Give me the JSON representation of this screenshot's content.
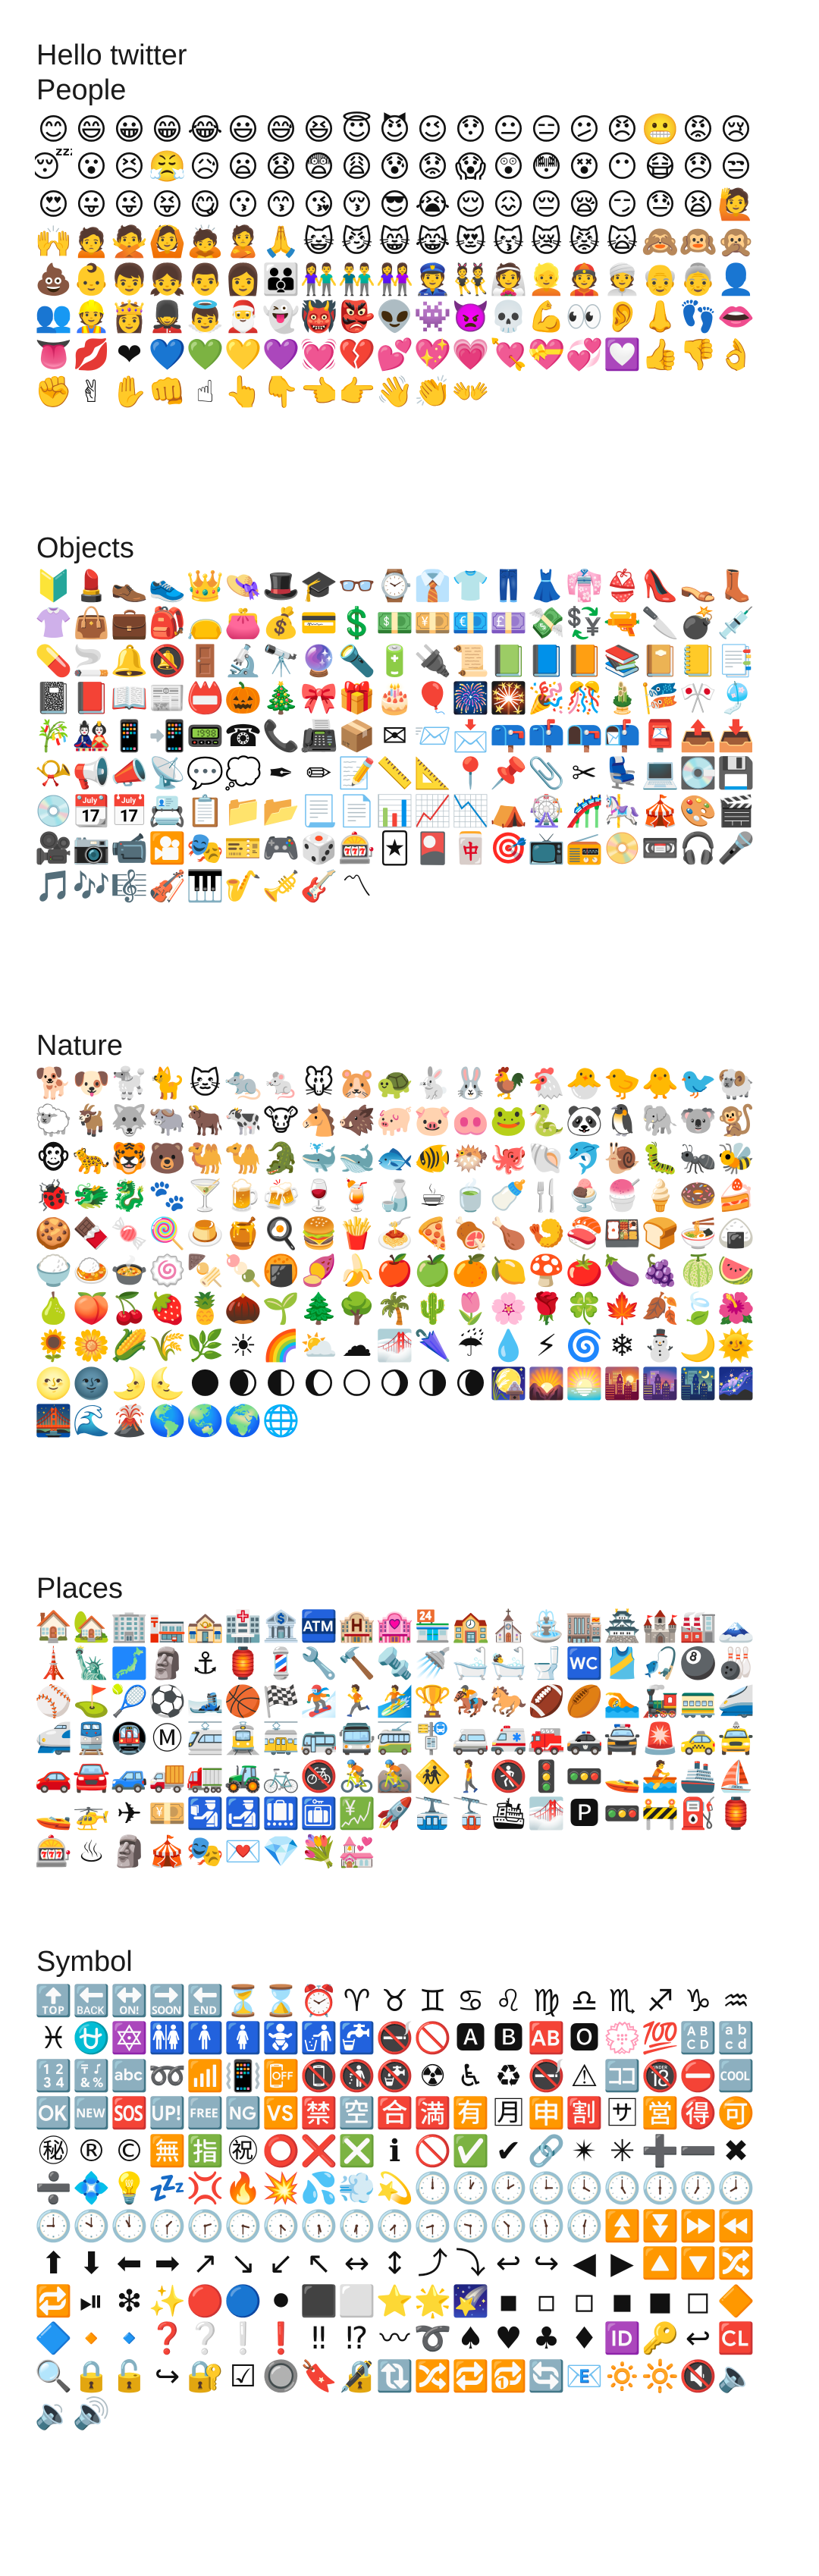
{
  "header": {
    "line1": "Hello twitter",
    "line2": "People"
  },
  "sections": [
    {
      "id": "people",
      "title": "",
      "emojis": [
        "😊",
        "😄",
        "😀",
        "😁",
        "😂",
        "😃",
        "😅",
        "😆",
        "😇",
        "😈",
        "😉",
        "😯",
        "😐",
        "😑",
        "😕",
        "😠",
        "😬",
        "😡",
        "😢",
        "😴",
        "😮",
        "😣",
        "😤",
        "😥",
        "😦",
        "😧",
        "😨",
        "😩",
        "😰",
        "😟",
        "😱",
        "😲",
        "😳",
        "😵",
        "😶",
        "😷",
        "😞",
        "😒",
        "😍",
        "😛",
        "😜",
        "😝",
        "😋",
        "😗",
        "😙",
        "😘",
        "😚",
        "😎",
        "😭",
        "😌",
        "😖",
        "😔",
        "😪",
        "😏",
        "😓",
        "😫",
        "🙋",
        "🙌",
        "🙍",
        "🙅",
        "🙆",
        "🙇",
        "🙎",
        "🙏",
        "😺",
        "😼",
        "😸",
        "😹",
        "😻",
        "😽",
        "😿",
        "😾",
        "🙀",
        "🙈",
        "🙉",
        "🙊",
        "💩",
        "👶",
        "👦",
        "👧",
        "👨",
        "👩",
        "👪",
        "👫",
        "👬",
        "👭",
        "👮",
        "👯",
        "👰",
        "👱",
        "👲",
        "👳",
        "👴",
        "👵",
        "👤",
        "👥",
        "👷",
        "👸",
        "💂",
        "👼",
        "🎅",
        "👻",
        "👹",
        "👺",
        "👽",
        "👾",
        "👿",
        "💀",
        "💪",
        "👀",
        "👂",
        "👃",
        "👣",
        "👄",
        "👅",
        "💋",
        "❤",
        "💙",
        "💚",
        "💛",
        "💜",
        "💓",
        "💔",
        "💕",
        "💖",
        "💗",
        "💘",
        "💝",
        "💞",
        "💟",
        "👍",
        "👎",
        "👌",
        "✊",
        "✌",
        "✋",
        "👊",
        "☝",
        "👆",
        "👇",
        "👈",
        "👉",
        "👋",
        "👏",
        "👐"
      ]
    },
    {
      "id": "objects",
      "title": "Objects",
      "emojis": [
        "🔰",
        "💄",
        "👞",
        "👟",
        "👑",
        "👒",
        "🎩",
        "🎓",
        "👓",
        "⌚",
        "👔",
        "👕",
        "👖",
        "👗",
        "👘",
        "👙",
        "👠",
        "👡",
        "👢",
        "👚",
        "👜",
        "💼",
        "🎒",
        "👝",
        "👛",
        "💰",
        "💳",
        "💲",
        "💵",
        "💴",
        "💶",
        "💷",
        "💸",
        "💱",
        "🔫",
        "🔪",
        "💣",
        "💉",
        "💊",
        "🚬",
        "🔔",
        "🔕",
        "🚪",
        "🔬",
        "🔭",
        "🔮",
        "🔦",
        "🔋",
        "🔌",
        "📜",
        "📗",
        "📘",
        "📙",
        "📚",
        "📔",
        "📒",
        "📑",
        "📓",
        "📕",
        "📖",
        "📰",
        "📛",
        "🎃",
        "🎄",
        "🎀",
        "🎁",
        "🎂",
        "🎈",
        "🎆",
        "🎇",
        "🎉",
        "🎊",
        "🎍",
        "🎏",
        "🎌",
        "🎐",
        "🎋",
        "🎎",
        "📱",
        "📲",
        "📟",
        "☎",
        "📞",
        "📠",
        "📦",
        "✉",
        "📨",
        "📩",
        "📪",
        "📫",
        "📭",
        "📬",
        "📮",
        "📤",
        "📥",
        "📯",
        "📢",
        "📣",
        "📡",
        "💬",
        "💭",
        "✒",
        "✏",
        "📝",
        "📏",
        "📐",
        "📍",
        "📌",
        "📎",
        "✂",
        "💺",
        "💻",
        "💽",
        "💾",
        "💿",
        "📆",
        "📅",
        "📇",
        "📋",
        "📁",
        "📂",
        "📃",
        "📄",
        "📊",
        "📈",
        "📉",
        "⛺",
        "🎡",
        "🎢",
        "🎠",
        "🎪",
        "🎨",
        "🎬",
        "🎥",
        "📷",
        "📹",
        "🎦",
        "🎭",
        "🎫",
        "🎮",
        "🎲",
        "🎰",
        "🃏",
        "🎴",
        "🀄",
        "🎯",
        "📺",
        "📻",
        "📀",
        "📼",
        "🎧",
        "🎤",
        "🎵",
        "🎶",
        "🎼",
        "🎻",
        "🎹",
        "🎷",
        "🎺",
        "🎸",
        "〽"
      ]
    },
    {
      "id": "nature",
      "title": "Nature",
      "emojis": [
        "🐕",
        "🐶",
        "🐩",
        "🐈",
        "🐱",
        "🐀",
        "🐁",
        "🐭",
        "🐹",
        "🐢",
        "🐇",
        "🐰",
        "🐓",
        "🐔",
        "🐣",
        "🐤",
        "🐥",
        "🐦",
        "🐏",
        "🐑",
        "🐐",
        "🐺",
        "🐃",
        "🐂",
        "🐄",
        "🐮",
        "🐴",
        "🐗",
        "🐖",
        "🐷",
        "🐽",
        "🐸",
        "🐍",
        "🐼",
        "🐧",
        "🐘",
        "🐨",
        "🐒",
        "🐵",
        "🐆",
        "🐯",
        "🐻",
        "🐫",
        "🐪",
        "🐊",
        "🐳",
        "🐋",
        "🐟",
        "🐠",
        "🐡",
        "🐙",
        "🐚",
        "🐬",
        "🐌",
        "🐛",
        "🐜",
        "🐝",
        "🐞",
        "🐲",
        "🐉",
        "🐾",
        "🍸",
        "🍺",
        "🍻",
        "🍷",
        "🍹",
        "🍶",
        "☕",
        "🍵",
        "🍼",
        "🍴",
        "🍨",
        "🍧",
        "🍦",
        "🍩",
        "🍰",
        "🍪",
        "🍫",
        "🍬",
        "🍭",
        "🍮",
        "🍯",
        "🍳",
        "🍔",
        "🍟",
        "🍝",
        "🍕",
        "🍖",
        "🍗",
        "🍤",
        "🍣",
        "🍱",
        "🍞",
        "🍜",
        "🍙",
        "🍚",
        "🍛",
        "🍲",
        "🍥",
        "🍢",
        "🍡",
        "🍘",
        "🍠",
        "🍌",
        "🍎",
        "🍏",
        "🍊",
        "🍋",
        "🍄",
        "🍅",
        "🍆",
        "🍇",
        "🍈",
        "🍉",
        "🍐",
        "🍑",
        "🍒",
        "🍓",
        "🍍",
        "🌰",
        "🌱",
        "🌲",
        "🌳",
        "🌴",
        "🌵",
        "🌷",
        "🌸",
        "🌹",
        "🍀",
        "🍁",
        "🍂",
        "🍃",
        "🌺",
        "🌻",
        "🌼",
        "🌽",
        "🌾",
        "🌿",
        "☀",
        "🌈",
        "⛅",
        "☁",
        "🌁",
        "🌂",
        "☔",
        "💧",
        "⚡",
        "🌀",
        "❄",
        "⛄",
        "🌙",
        "🌞",
        "🌝",
        "🌚",
        "🌛",
        "🌜",
        "🌑",
        "🌒",
        "🌓",
        "🌔",
        "🌕",
        "🌖",
        "🌗",
        "🌘",
        "🎑",
        "🌄",
        "🌅",
        "🌇",
        "🌆",
        "🌃",
        "🌌",
        "🌉",
        "🌊",
        "🌋",
        "🌎",
        "🌏",
        "🌍",
        "🌐"
      ]
    },
    {
      "id": "places",
      "title": "Places",
      "emojis": [
        "🏠",
        "🏡",
        "🏢",
        "🏣",
        "🏤",
        "🏥",
        "🏦",
        "🏧",
        "🏨",
        "🏩",
        "🏪",
        "🏫",
        "⛪",
        "⛲",
        "🏬",
        "🏯",
        "🏰",
        "🏭",
        "🗻",
        "🗼",
        "🗽",
        "🗾",
        "🗿",
        "⚓",
        "🏮",
        "💈",
        "🔧",
        "🔨",
        "🔩",
        "🚿",
        "🛁",
        "🛀",
        "🚽",
        "🚾",
        "🎽",
        "🎣",
        "🎱",
        "🎳",
        "⚾",
        "⛳",
        "🎾",
        "⚽",
        "🎿",
        "🏀",
        "🏁",
        "🏂",
        "🏃",
        "🏄",
        "🏆",
        "🏇",
        "🐎",
        "🏈",
        "🏉",
        "🏊",
        "🚂",
        "🚃",
        "🚄",
        "🚅",
        "🚆",
        "🚇",
        "Ⓜ",
        "🚈",
        "🚊",
        "🚋",
        "🚌",
        "🚍",
        "🚎",
        "🚏",
        "🚐",
        "🚑",
        "🚒",
        "🚓",
        "🚔",
        "🚨",
        "🚕",
        "🚖",
        "🚗",
        "🚘",
        "🚙",
        "🚚",
        "🚛",
        "🚜",
        "🚲",
        "🚳",
        "🚴",
        "🚵",
        "🚸",
        "🚶",
        "🚷",
        "🚦",
        "🚥",
        "🚤",
        "🚣",
        "🚢",
        "⛵",
        "🚤",
        "🚁",
        "✈",
        "💴",
        "🛂",
        "🛃",
        "🛄",
        "🛅",
        "💹",
        "🚀",
        "🚠",
        "🚡",
        "🛳",
        "🌁",
        "🅿",
        "🚥",
        "🚧",
        "⛽",
        "🏮",
        "🎰",
        "♨",
        "🗿",
        "🎪",
        "🎭",
        "💌",
        "💎",
        "💐",
        "💒"
      ]
    },
    {
      "id": "symbol",
      "title": "Symbol",
      "emojis": [
        "🔝",
        "🔙",
        "🔛",
        "🔜",
        "🔚",
        "⏳",
        "⌛",
        "⏰",
        "♈",
        "♉",
        "♊",
        "♋",
        "♌",
        "♍",
        "♎",
        "♏",
        "♐",
        "♑",
        "♒",
        "♓",
        "⛎",
        "🔯",
        "🚻",
        "🚹",
        "🚺",
        "🚼",
        "🚮",
        "🚰",
        "🚭",
        "🚫",
        "🅰",
        "🅱",
        "🆎",
        "🅾",
        "💮",
        "💯",
        "🔠",
        "🔡",
        "🔢",
        "🔣",
        "🔤",
        "➿",
        "📶",
        "📳",
        "📴",
        "📵",
        "🚯",
        "🚱",
        "☢",
        "♿",
        "♻",
        "🚭",
        "⚠",
        "🈁",
        "🔞",
        "⛔",
        "🆒",
        "🆗",
        "🆕",
        "🆘",
        "🆙",
        "🆓",
        "🆖",
        "🆚",
        "🈲",
        "🈳",
        "🈴",
        "🈵",
        "🈶",
        "🈷",
        "🈸",
        "🈹",
        "🈂",
        "🈺",
        "🉐",
        "🉑",
        "㊙",
        "®",
        "©",
        "🈚",
        "🈯",
        "㊗",
        "⭕",
        "❌",
        "❎",
        "ℹ",
        "🚫",
        "✅",
        "✔",
        "🔗",
        "✴",
        "✳",
        "➕",
        "➖",
        "✖",
        "➗",
        "💠",
        "💡",
        "💤",
        "💢",
        "🔥",
        "💥",
        "💦",
        "💨",
        "💫",
        "🕛",
        "🕐",
        "🕑",
        "🕒",
        "🕓",
        "🕔",
        "🕕",
        "🕖",
        "🕗",
        "🕘",
        "🕙",
        "🕚",
        "🕜",
        "🕝",
        "🕞",
        "🕟",
        "🕠",
        "🕡",
        "🕢",
        "🕣",
        "🕤",
        "🕥",
        "🕦",
        "🕧",
        "⏫",
        "⏬",
        "⏩",
        "⏪",
        "⬆",
        "⬇",
        "⬅",
        "➡",
        "↗",
        "↘",
        "↙",
        "↖",
        "↔",
        "↕",
        "⤴",
        "⤵",
        "↩",
        "↪",
        "◀",
        "▶",
        "🔼",
        "🔽",
        "🔀",
        "🔁",
        "⏯",
        "❇",
        "✨",
        "🔴",
        "🔵",
        "⚫",
        "⬛",
        "⬜",
        "⭐",
        "🌟",
        "🌠",
        "▪",
        "▫",
        "◽",
        "◾",
        "◼",
        "◻",
        "🔶",
        "🔷",
        "🔸",
        "🔹",
        "❓",
        "❔",
        "❕",
        "❗",
        "‼",
        "⁉",
        "〰",
        "➰",
        "♠",
        "♥",
        "♣",
        "♦",
        "🆔",
        "🔑",
        "↩",
        "🆑",
        "🔍",
        "🔒",
        "🔓",
        "↪",
        "🔐",
        "☑",
        "🔘",
        "🔖",
        "🔏",
        "🔃",
        "🔀",
        "🔁",
        "🔂",
        "🔄",
        "📧",
        "🔅",
        "🔆",
        "🔇",
        "🔈",
        "🔉",
        "🔊"
      ]
    }
  ]
}
